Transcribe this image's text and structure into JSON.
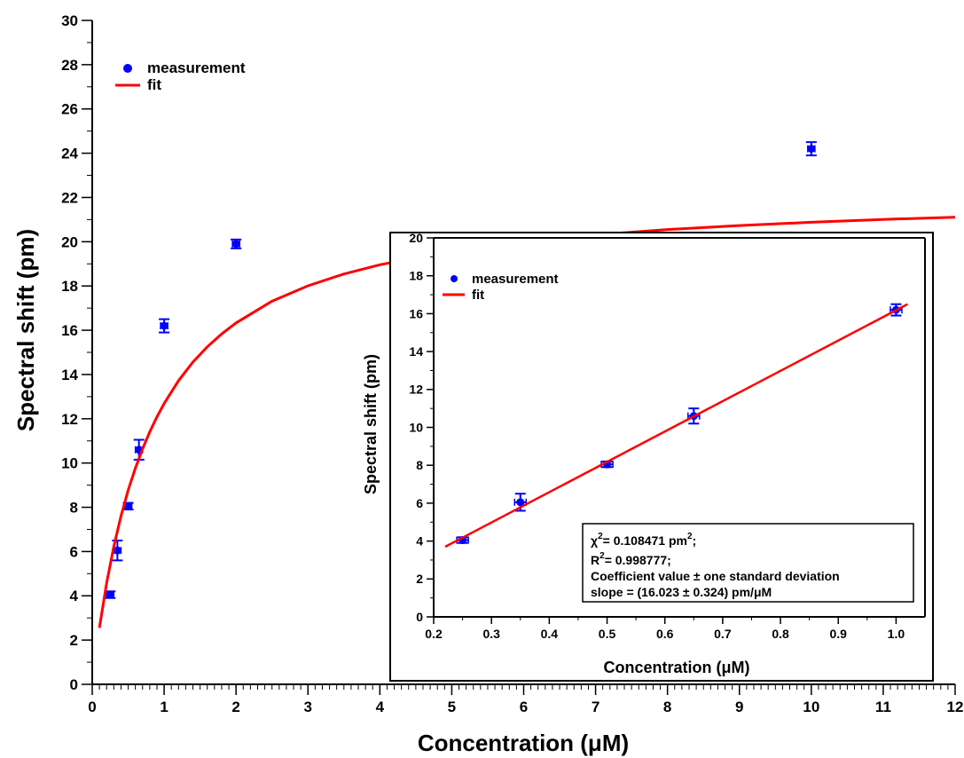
{
  "chart_data": [
    {
      "type": "scatter",
      "xlabel": "Concentration (μM)",
      "ylabel": "Spectral shift (pm)",
      "xlim": [
        0,
        12
      ],
      "ylim": [
        0,
        30
      ],
      "x_ticks": [
        0,
        1,
        2,
        3,
        4,
        5,
        6,
        7,
        8,
        9,
        10,
        11,
        12
      ],
      "y_ticks": [
        0,
        2,
        4,
        6,
        8,
        10,
        12,
        14,
        16,
        18,
        20,
        22,
        24,
        26,
        28,
        30
      ],
      "legend": [
        "measurement",
        "fit"
      ],
      "legend_position": "top-left",
      "series": [
        {
          "name": "measurement",
          "color": "#0000ff",
          "points": [
            {
              "x": 0.25,
              "y": 4.05,
              "yerr": 0.15,
              "xerr": 0.05
            },
            {
              "x": 0.35,
              "y": 6.05,
              "yerr": 0.45,
              "xerr": 0.05
            },
            {
              "x": 0.5,
              "y": 8.05,
              "yerr": 0.15,
              "xerr": 0.05
            },
            {
              "x": 0.65,
              "y": 10.6,
              "yerr": 0.45,
              "xerr": 0.05
            },
            {
              "x": 1.0,
              "y": 16.2,
              "yerr": 0.3,
              "xerr": 0.05
            },
            {
              "x": 2.0,
              "y": 19.9,
              "yerr": 0.2,
              "xerr": 0.05
            },
            {
              "x": 10.0,
              "y": 24.2,
              "yerr": 0.3,
              "xerr": 0.05
            }
          ]
        },
        {
          "name": "fit",
          "color": "#ff0000",
          "line": true,
          "x": [
            0.1,
            0.2,
            0.3,
            0.4,
            0.5,
            0.6,
            0.7,
            0.8,
            0.9,
            1.0,
            1.2,
            1.4,
            1.6,
            1.8,
            2.0,
            2.5,
            3,
            3.5,
            4,
            5,
            6,
            7,
            8,
            9,
            10,
            11,
            12
          ],
          "y": [
            2.55,
            4.57,
            6.22,
            7.6,
            8.77,
            9.77,
            10.64,
            11.41,
            12.09,
            12.69,
            13.72,
            14.56,
            15.25,
            15.83,
            16.33,
            17.31,
            18.01,
            18.54,
            18.96,
            19.58,
            20.0,
            20.31,
            20.55,
            20.73,
            20.88,
            21.01,
            21.11
          ]
        }
      ]
    },
    {
      "type": "scatter",
      "xlabel": "Concentration (μM)",
      "ylabel": "Spectral shift (pm)",
      "xlim": [
        0.2,
        1.05
      ],
      "ylim": [
        0,
        20
      ],
      "x_ticks": [
        "0.2",
        "0.3",
        "0.4",
        "0.5",
        "0.6",
        "0.7",
        "0.8",
        "0.9",
        "1.0"
      ],
      "y_ticks": [
        0,
        2,
        4,
        6,
        8,
        10,
        12,
        14,
        16,
        18,
        20
      ],
      "legend": [
        "measurement",
        "fit"
      ],
      "legend_position": "top-left",
      "series": [
        {
          "name": "measurement",
          "color": "#0000ff",
          "points": [
            {
              "x": 0.25,
              "y": 4.05,
              "yerr": 0.15,
              "xerr": 0.01
            },
            {
              "x": 0.35,
              "y": 6.05,
              "yerr": 0.45,
              "xerr": 0.01
            },
            {
              "x": 0.5,
              "y": 8.05,
              "yerr": 0.15,
              "xerr": 0.01
            },
            {
              "x": 0.65,
              "y": 10.6,
              "yerr": 0.4,
              "xerr": 0.01
            },
            {
              "x": 1.0,
              "y": 16.2,
              "yerr": 0.3,
              "xerr": 0.01
            }
          ]
        },
        {
          "name": "fit",
          "color": "#ff0000",
          "line": true,
          "x": [
            0.22,
            1.02
          ],
          "y": [
            3.7,
            16.5
          ]
        }
      ],
      "annotation": {
        "chi2": "χ",
        "chi2_sup": "2",
        "chi2_val": "= 0.108471 pm",
        "chi2_unit_sup": "2",
        "chi2_end": ";",
        "r2": "R",
        "r2_sup": "2",
        "r2_val": "= 0.998777;",
        "coef": "Coefficient value ± one standard deviation",
        "slope": "slope = (16.023 ± 0.324) pm/μM"
      }
    }
  ]
}
